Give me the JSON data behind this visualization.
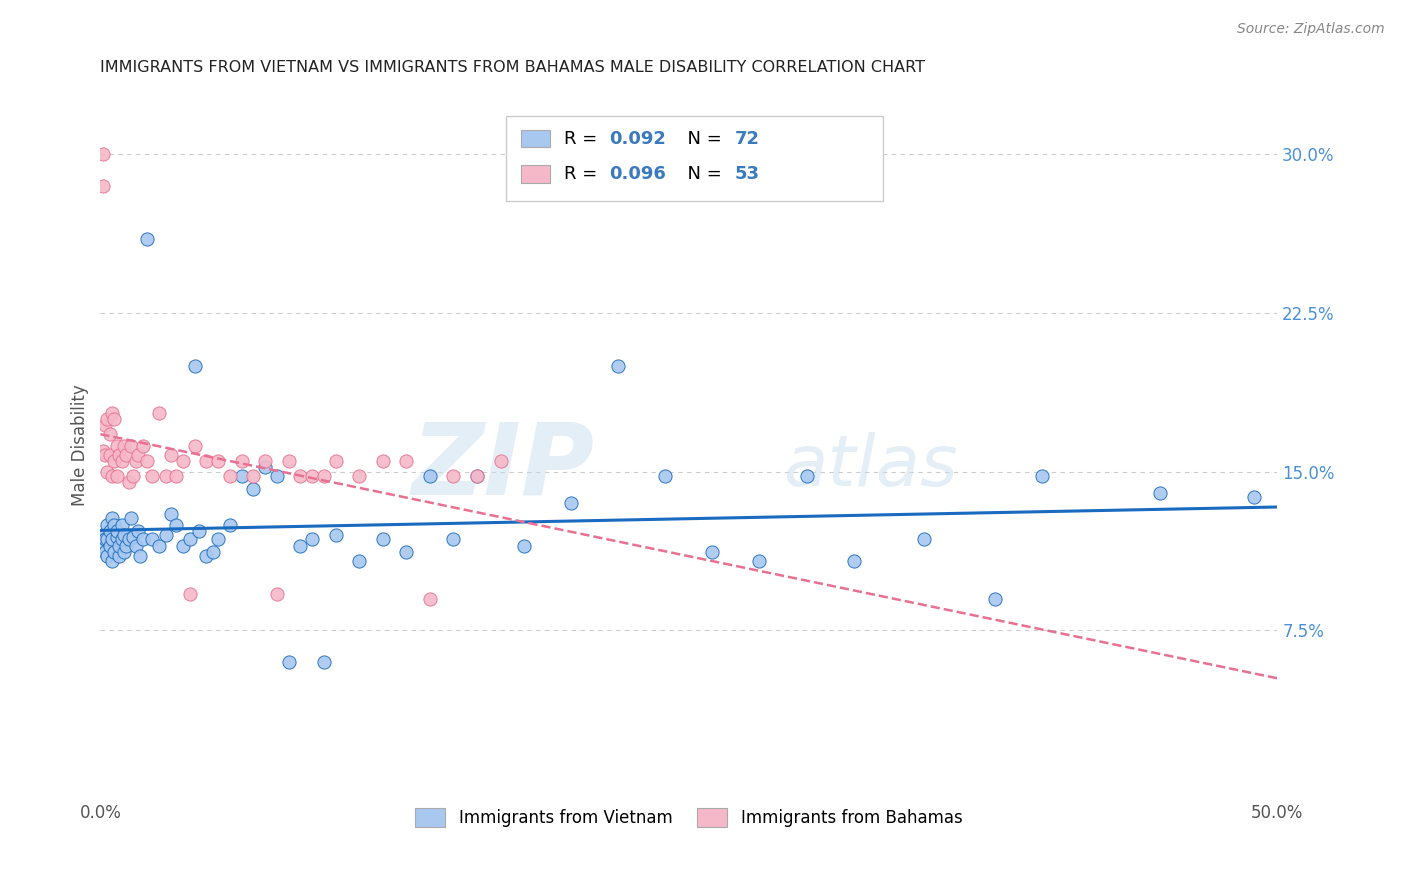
{
  "title": "IMMIGRANTS FROM VIETNAM VS IMMIGRANTS FROM BAHAMAS MALE DISABILITY CORRELATION CHART",
  "source": "Source: ZipAtlas.com",
  "ylabel": "Male Disability",
  "xlim": [
    0.0,
    0.5
  ],
  "ylim": [
    -0.005,
    0.33
  ],
  "legend_labels": [
    "Immigrants from Vietnam",
    "Immigrants from Bahamas"
  ],
  "R_vietnam": "0.092",
  "N_vietnam": "72",
  "R_bahamas": "0.096",
  "N_bahamas": "53",
  "color_vietnam": "#a8c8f0",
  "color_bahamas": "#f5b8c8",
  "line_color_vietnam": "#1a6bbf",
  "line_color_bahamas": "#e87090",
  "watermark_zip": "ZIP",
  "watermark_atlas": "atlas",
  "yticks_right": [
    0.075,
    0.15,
    0.225,
    0.3
  ],
  "ytick_labels_right": [
    "7.5%",
    "15.0%",
    "22.5%",
    "30.0%"
  ],
  "vietnam_x": [
    0.001,
    0.001,
    0.002,
    0.002,
    0.003,
    0.003,
    0.003,
    0.004,
    0.004,
    0.005,
    0.005,
    0.005,
    0.006,
    0.006,
    0.007,
    0.007,
    0.008,
    0.008,
    0.009,
    0.009,
    0.01,
    0.01,
    0.011,
    0.012,
    0.013,
    0.014,
    0.015,
    0.016,
    0.017,
    0.018,
    0.02,
    0.022,
    0.025,
    0.028,
    0.03,
    0.032,
    0.035,
    0.038,
    0.04,
    0.042,
    0.045,
    0.048,
    0.05,
    0.055,
    0.06,
    0.065,
    0.07,
    0.075,
    0.08,
    0.085,
    0.09,
    0.095,
    0.1,
    0.11,
    0.12,
    0.13,
    0.14,
    0.15,
    0.16,
    0.18,
    0.2,
    0.22,
    0.24,
    0.26,
    0.28,
    0.3,
    0.32,
    0.35,
    0.38,
    0.4,
    0.45,
    0.49
  ],
  "vietnam_y": [
    0.12,
    0.115,
    0.118,
    0.112,
    0.125,
    0.11,
    0.118,
    0.122,
    0.115,
    0.128,
    0.118,
    0.108,
    0.112,
    0.125,
    0.119,
    0.122,
    0.11,
    0.115,
    0.118,
    0.125,
    0.112,
    0.12,
    0.115,
    0.118,
    0.128,
    0.119,
    0.115,
    0.122,
    0.11,
    0.118,
    0.26,
    0.118,
    0.115,
    0.12,
    0.13,
    0.125,
    0.115,
    0.118,
    0.2,
    0.122,
    0.11,
    0.112,
    0.118,
    0.125,
    0.148,
    0.142,
    0.152,
    0.148,
    0.06,
    0.115,
    0.118,
    0.06,
    0.12,
    0.108,
    0.118,
    0.112,
    0.148,
    0.118,
    0.148,
    0.115,
    0.135,
    0.2,
    0.148,
    0.112,
    0.108,
    0.148,
    0.108,
    0.118,
    0.09,
    0.148,
    0.14,
    0.138
  ],
  "bahamas_x": [
    0.001,
    0.001,
    0.001,
    0.002,
    0.002,
    0.003,
    0.003,
    0.004,
    0.004,
    0.005,
    0.005,
    0.006,
    0.006,
    0.007,
    0.007,
    0.008,
    0.009,
    0.01,
    0.011,
    0.012,
    0.013,
    0.014,
    0.015,
    0.016,
    0.018,
    0.02,
    0.022,
    0.025,
    0.028,
    0.03,
    0.032,
    0.035,
    0.038,
    0.04,
    0.045,
    0.05,
    0.055,
    0.06,
    0.065,
    0.07,
    0.075,
    0.08,
    0.085,
    0.09,
    0.095,
    0.1,
    0.11,
    0.12,
    0.13,
    0.14,
    0.15,
    0.16,
    0.17
  ],
  "bahamas_y": [
    0.3,
    0.285,
    0.16,
    0.172,
    0.158,
    0.175,
    0.15,
    0.168,
    0.158,
    0.178,
    0.148,
    0.175,
    0.155,
    0.148,
    0.162,
    0.158,
    0.155,
    0.162,
    0.158,
    0.145,
    0.162,
    0.148,
    0.155,
    0.158,
    0.162,
    0.155,
    0.148,
    0.178,
    0.148,
    0.158,
    0.148,
    0.155,
    0.092,
    0.162,
    0.155,
    0.155,
    0.148,
    0.155,
    0.148,
    0.155,
    0.092,
    0.155,
    0.148,
    0.148,
    0.148,
    0.155,
    0.148,
    0.155,
    0.155,
    0.09,
    0.148,
    0.148,
    0.155
  ]
}
